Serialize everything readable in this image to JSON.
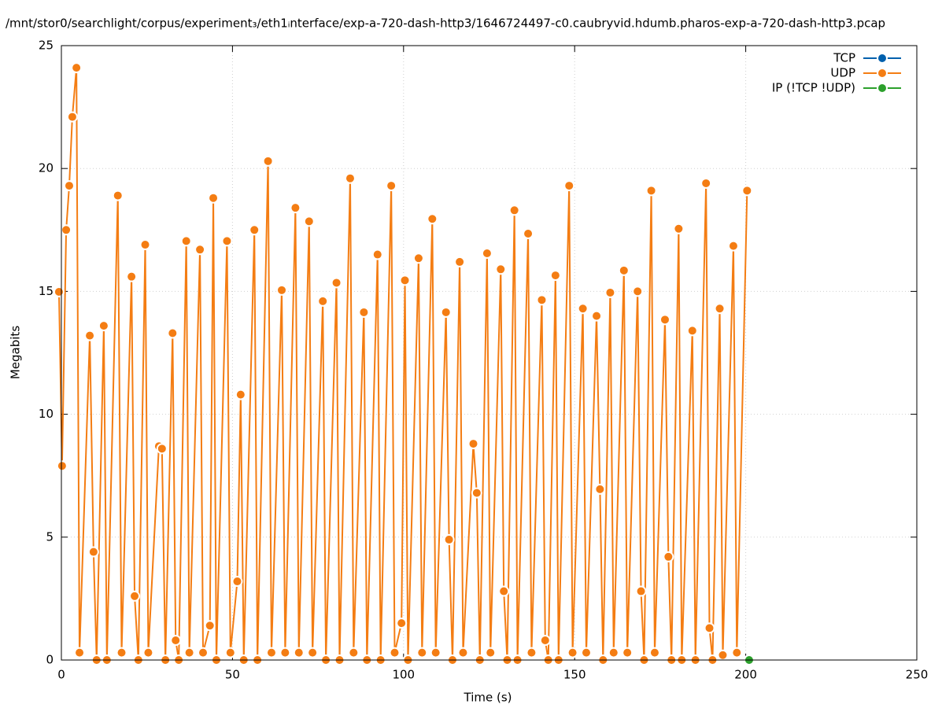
{
  "chart_data": {
    "type": "line",
    "title": "/mnt/stor0/searchlight/corpus/experiment₃/eth1ᵢnterface/exp-a-720-dash-http3/1646724497-c0.caubryvid.hdumb.pharos-exp-a-720-dash-http3.pcap",
    "xlabel": "Time (s)",
    "ylabel": "Megabits",
    "xlim": [
      0,
      250
    ],
    "xticks": [
      0,
      50,
      100,
      150,
      200,
      250
    ],
    "ylim": [
      0,
      25
    ],
    "yticks": [
      0,
      5,
      10,
      15,
      20,
      25
    ],
    "grid": true,
    "legend": "upper right",
    "series": [
      {
        "name": "TCP",
        "color": "#0060ad",
        "x": [],
        "values": []
      },
      {
        "name": "UDP",
        "color": "#f47d13",
        "x": [
          -0.7,
          0.2,
          1.4,
          2.3,
          3.2,
          4.4,
          5.3,
          8.3,
          9.4,
          10.3,
          12.4,
          13.3,
          16.5,
          17.6,
          20.5,
          21.4,
          22.5,
          24.5,
          25.4,
          28.5,
          29.4,
          30.4,
          32.5,
          33.4,
          34.3,
          36.5,
          37.4,
          40.5,
          41.4,
          43.4,
          44.4,
          45.3,
          48.4,
          49.4,
          51.4,
          52.4,
          53.3,
          56.4,
          57.3,
          60.4,
          61.4,
          64.4,
          65.4,
          68.4,
          69.4,
          72.4,
          73.4,
          76.4,
          77.3,
          80.4,
          81.3,
          84.4,
          85.4,
          88.4,
          89.3,
          92.4,
          93.3,
          96.4,
          97.4,
          99.4,
          100.4,
          101.3,
          104.4,
          105.4,
          108.4,
          109.4,
          112.4,
          113.3,
          114.3,
          116.4,
          117.4,
          120.4,
          121.4,
          122.3,
          124.4,
          125.4,
          128.4,
          129.3,
          130.3,
          132.4,
          133.3,
          136.4,
          137.4,
          140.4,
          141.4,
          142.3,
          144.4,
          145.3,
          148.4,
          149.4,
          152.4,
          153.4,
          156.4,
          157.4,
          158.3,
          160.4,
          161.4,
          164.4,
          165.4,
          168.4,
          169.4,
          170.3,
          172.4,
          173.4,
          176.4,
          177.4,
          178.3,
          180.4,
          181.3,
          184.4,
          185.3,
          188.4,
          189.4,
          190.3,
          192.4,
          193.3,
          196.4,
          197.4,
          200.4
        ],
        "values": [
          14.98,
          7.9,
          17.5,
          19.3,
          22.1,
          24.1,
          0.3,
          13.2,
          4.4,
          0,
          13.6,
          0,
          18.9,
          0.3,
          15.6,
          2.6,
          0,
          16.9,
          0.3,
          8.7,
          8.6,
          0,
          13.3,
          0.8,
          0,
          17.05,
          0.3,
          16.7,
          0.3,
          1.4,
          18.8,
          0,
          17.05,
          0.3,
          3.2,
          10.8,
          0,
          17.5,
          0,
          20.3,
          0.3,
          15.05,
          0.3,
          18.4,
          0.3,
          17.85,
          0.3,
          14.6,
          0,
          15.35,
          0,
          19.6,
          0.3,
          14.15,
          0,
          16.5,
          0,
          19.3,
          0.3,
          1.5,
          15.45,
          0,
          16.35,
          0.3,
          17.95,
          0.3,
          14.15,
          4.9,
          0,
          16.2,
          0.3,
          8.8,
          6.8,
          0,
          16.55,
          0.3,
          15.9,
          2.8,
          0,
          18.3,
          0,
          17.35,
          0.3,
          14.65,
          0.8,
          0,
          15.65,
          0,
          19.3,
          0.3,
          14.3,
          0.3,
          14.0,
          6.95,
          0,
          14.95,
          0.3,
          15.85,
          0.3,
          15.0,
          2.8,
          0,
          19.1,
          0.3,
          13.85,
          4.2,
          0,
          17.55,
          0,
          13.4,
          0,
          19.4,
          1.3,
          0,
          14.3,
          0.2,
          16.85,
          0.3,
          19.1
        ]
      },
      {
        "name": "IP (!TCP  !UDP)",
        "color": "#2ca02c",
        "x": [
          201
        ],
        "values": [
          0
        ]
      }
    ]
  }
}
